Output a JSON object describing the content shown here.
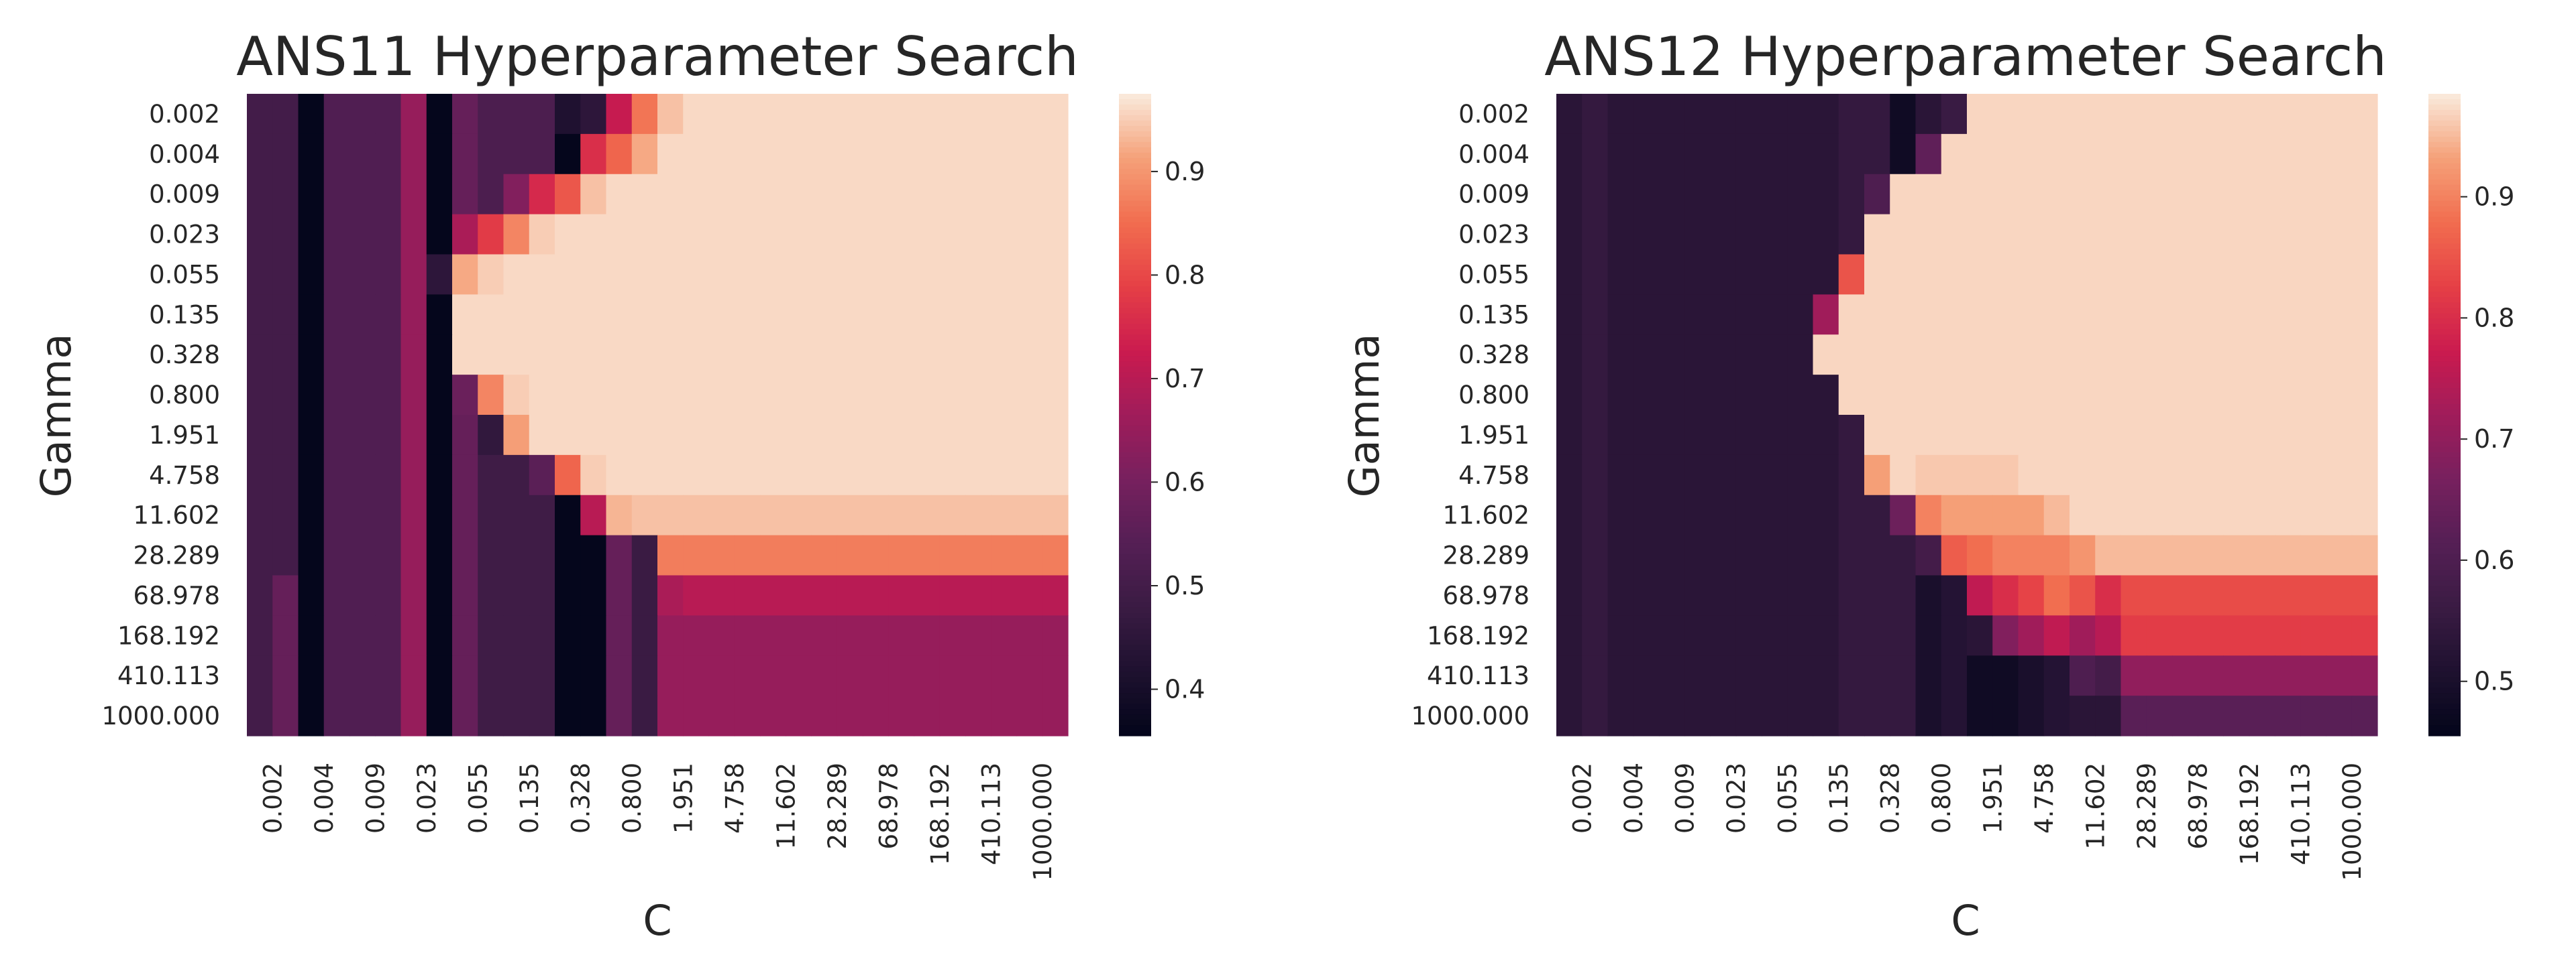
{
  "chart_data": [
    {
      "type": "heatmap",
      "title": "ANS11 Hyperparameter Search",
      "xlabel": "C",
      "ylabel": "Gamma",
      "x_tick_labels": [
        "0.002",
        "0.004",
        "0.009",
        "0.023",
        "0.055",
        "0.135",
        "0.328",
        "0.800",
        "1.951",
        "4.758",
        "11.602",
        "28.289",
        "68.978",
        "168.192",
        "410.113",
        "1000.000"
      ],
      "y_tick_labels": [
        "0.002",
        "0.004",
        "0.009",
        "0.023",
        "0.055",
        "0.135",
        "0.328",
        "0.800",
        "1.951",
        "4.758",
        "11.602",
        "28.289",
        "68.978",
        "168.192",
        "410.113",
        "1000.000"
      ],
      "grid_size": [
        32,
        16
      ],
      "colorbar": {
        "range": [
          0.355,
          0.975
        ],
        "ticks": [
          0.4,
          0.5,
          0.6,
          0.7,
          0.8,
          0.9
        ],
        "colormap": "rocket"
      },
      "values_note_columns": "rows are gamma (16, top to bottom), columns are C (32, left to right)",
      "values": [
        [
          0.5,
          0.5,
          0.36,
          0.53,
          0.53,
          0.53,
          0.65,
          0.36,
          0.57,
          0.52,
          0.52,
          0.52,
          0.42,
          0.45,
          0.72,
          0.86,
          0.94,
          0.96,
          0.96,
          0.96,
          0.96,
          0.96,
          0.96,
          0.96,
          0.96,
          0.96,
          0.96,
          0.96,
          0.96,
          0.96,
          0.96,
          0.96
        ],
        [
          0.5,
          0.5,
          0.36,
          0.53,
          0.53,
          0.53,
          0.65,
          0.36,
          0.57,
          0.52,
          0.52,
          0.52,
          0.36,
          0.76,
          0.84,
          0.92,
          0.96,
          0.96,
          0.96,
          0.96,
          0.96,
          0.96,
          0.96,
          0.96,
          0.96,
          0.96,
          0.96,
          0.96,
          0.96,
          0.96,
          0.96,
          0.96
        ],
        [
          0.5,
          0.5,
          0.36,
          0.53,
          0.53,
          0.53,
          0.65,
          0.36,
          0.57,
          0.52,
          0.62,
          0.75,
          0.82,
          0.94,
          0.96,
          0.96,
          0.96,
          0.96,
          0.96,
          0.96,
          0.96,
          0.96,
          0.96,
          0.96,
          0.96,
          0.96,
          0.96,
          0.96,
          0.96,
          0.96,
          0.96,
          0.96
        ],
        [
          0.5,
          0.5,
          0.36,
          0.53,
          0.53,
          0.53,
          0.65,
          0.36,
          0.68,
          0.78,
          0.88,
          0.95,
          0.96,
          0.96,
          0.96,
          0.96,
          0.96,
          0.96,
          0.96,
          0.96,
          0.96,
          0.96,
          0.96,
          0.96,
          0.96,
          0.96,
          0.96,
          0.96,
          0.96,
          0.96,
          0.96,
          0.96
        ],
        [
          0.5,
          0.5,
          0.36,
          0.53,
          0.53,
          0.53,
          0.65,
          0.45,
          0.92,
          0.95,
          0.96,
          0.96,
          0.96,
          0.96,
          0.96,
          0.96,
          0.96,
          0.96,
          0.96,
          0.96,
          0.96,
          0.96,
          0.96,
          0.96,
          0.96,
          0.96,
          0.96,
          0.96,
          0.96,
          0.96,
          0.96,
          0.96
        ],
        [
          0.5,
          0.5,
          0.36,
          0.53,
          0.53,
          0.53,
          0.65,
          0.36,
          0.96,
          0.96,
          0.96,
          0.96,
          0.96,
          0.96,
          0.96,
          0.96,
          0.96,
          0.96,
          0.96,
          0.96,
          0.96,
          0.96,
          0.96,
          0.96,
          0.96,
          0.96,
          0.96,
          0.96,
          0.96,
          0.96,
          0.96,
          0.96
        ],
        [
          0.5,
          0.5,
          0.36,
          0.53,
          0.53,
          0.53,
          0.65,
          0.36,
          0.96,
          0.96,
          0.96,
          0.96,
          0.96,
          0.96,
          0.96,
          0.96,
          0.96,
          0.96,
          0.96,
          0.96,
          0.96,
          0.96,
          0.96,
          0.96,
          0.96,
          0.96,
          0.96,
          0.96,
          0.96,
          0.96,
          0.96,
          0.96
        ],
        [
          0.5,
          0.5,
          0.36,
          0.53,
          0.53,
          0.53,
          0.65,
          0.36,
          0.58,
          0.88,
          0.95,
          0.96,
          0.96,
          0.96,
          0.96,
          0.96,
          0.96,
          0.96,
          0.96,
          0.96,
          0.96,
          0.96,
          0.96,
          0.96,
          0.96,
          0.96,
          0.96,
          0.96,
          0.96,
          0.96,
          0.96,
          0.96
        ],
        [
          0.5,
          0.5,
          0.36,
          0.53,
          0.53,
          0.53,
          0.65,
          0.36,
          0.57,
          0.46,
          0.91,
          0.96,
          0.96,
          0.96,
          0.96,
          0.96,
          0.96,
          0.96,
          0.96,
          0.96,
          0.96,
          0.96,
          0.96,
          0.96,
          0.96,
          0.96,
          0.96,
          0.96,
          0.96,
          0.96,
          0.96,
          0.96
        ],
        [
          0.5,
          0.5,
          0.36,
          0.53,
          0.53,
          0.53,
          0.65,
          0.36,
          0.57,
          0.49,
          0.49,
          0.55,
          0.84,
          0.95,
          0.96,
          0.96,
          0.96,
          0.96,
          0.96,
          0.96,
          0.96,
          0.96,
          0.96,
          0.96,
          0.96,
          0.96,
          0.96,
          0.96,
          0.96,
          0.96,
          0.96,
          0.96
        ],
        [
          0.5,
          0.5,
          0.36,
          0.53,
          0.53,
          0.53,
          0.65,
          0.36,
          0.57,
          0.49,
          0.49,
          0.49,
          0.36,
          0.7,
          0.93,
          0.94,
          0.94,
          0.94,
          0.94,
          0.94,
          0.94,
          0.94,
          0.94,
          0.94,
          0.94,
          0.94,
          0.94,
          0.94,
          0.94,
          0.94,
          0.94,
          0.94
        ],
        [
          0.5,
          0.5,
          0.36,
          0.53,
          0.53,
          0.53,
          0.65,
          0.36,
          0.57,
          0.49,
          0.49,
          0.49,
          0.36,
          0.36,
          0.57,
          0.48,
          0.87,
          0.87,
          0.87,
          0.87,
          0.87,
          0.87,
          0.87,
          0.87,
          0.87,
          0.87,
          0.87,
          0.87,
          0.87,
          0.87,
          0.87,
          0.87
        ],
        [
          0.5,
          0.57,
          0.36,
          0.53,
          0.53,
          0.53,
          0.65,
          0.36,
          0.57,
          0.49,
          0.49,
          0.49,
          0.36,
          0.36,
          0.57,
          0.48,
          0.68,
          0.7,
          0.7,
          0.7,
          0.7,
          0.7,
          0.7,
          0.7,
          0.7,
          0.7,
          0.7,
          0.7,
          0.7,
          0.7,
          0.7,
          0.7
        ],
        [
          0.5,
          0.57,
          0.36,
          0.53,
          0.53,
          0.53,
          0.65,
          0.36,
          0.57,
          0.49,
          0.49,
          0.49,
          0.36,
          0.36,
          0.57,
          0.48,
          0.65,
          0.65,
          0.65,
          0.65,
          0.65,
          0.65,
          0.65,
          0.65,
          0.65,
          0.65,
          0.65,
          0.65,
          0.65,
          0.65,
          0.65,
          0.65
        ],
        [
          0.5,
          0.57,
          0.36,
          0.53,
          0.53,
          0.53,
          0.65,
          0.36,
          0.57,
          0.49,
          0.49,
          0.49,
          0.36,
          0.36,
          0.57,
          0.48,
          0.65,
          0.65,
          0.65,
          0.65,
          0.65,
          0.65,
          0.65,
          0.65,
          0.65,
          0.65,
          0.65,
          0.65,
          0.65,
          0.65,
          0.65,
          0.65
        ],
        [
          0.5,
          0.57,
          0.36,
          0.53,
          0.53,
          0.53,
          0.65,
          0.36,
          0.57,
          0.49,
          0.49,
          0.49,
          0.36,
          0.36,
          0.57,
          0.48,
          0.65,
          0.65,
          0.65,
          0.65,
          0.65,
          0.65,
          0.65,
          0.65,
          0.65,
          0.65,
          0.65,
          0.65,
          0.65,
          0.65,
          0.65,
          0.65
        ]
      ]
    },
    {
      "type": "heatmap",
      "title": "ANS12 Hyperparameter Search",
      "xlabel": "C",
      "ylabel": "Gamma",
      "x_tick_labels": [
        "0.002",
        "0.004",
        "0.009",
        "0.023",
        "0.055",
        "0.135",
        "0.328",
        "0.800",
        "1.951",
        "4.758",
        "11.602",
        "28.289",
        "68.978",
        "168.192",
        "410.113",
        "1000.000"
      ],
      "y_tick_labels": [
        "0.002",
        "0.004",
        "0.009",
        "0.023",
        "0.055",
        "0.135",
        "0.328",
        "0.800",
        "1.951",
        "4.758",
        "11.602",
        "28.289",
        "68.978",
        "168.192",
        "410.113",
        "1000.000"
      ],
      "grid_size": [
        32,
        16
      ],
      "colorbar": {
        "range": [
          0.455,
          0.985
        ],
        "ticks": [
          0.5,
          0.6,
          0.7,
          0.8,
          0.9
        ],
        "colormap": "rocket"
      },
      "values_note_columns": "rows are gamma (16, top to bottom), columns are C (32, left to right)",
      "values": [
        [
          0.53,
          0.55,
          0.53,
          0.53,
          0.53,
          0.53,
          0.53,
          0.53,
          0.53,
          0.53,
          0.53,
          0.55,
          0.55,
          0.48,
          0.53,
          0.56,
          0.97,
          0.97,
          0.97,
          0.97,
          0.97,
          0.97,
          0.97,
          0.97,
          0.97,
          0.97,
          0.97,
          0.97,
          0.97,
          0.97,
          0.97,
          0.97
        ],
        [
          0.53,
          0.55,
          0.53,
          0.53,
          0.53,
          0.53,
          0.53,
          0.53,
          0.53,
          0.53,
          0.53,
          0.55,
          0.55,
          0.48,
          0.63,
          0.97,
          0.97,
          0.97,
          0.97,
          0.97,
          0.97,
          0.97,
          0.97,
          0.97,
          0.97,
          0.97,
          0.97,
          0.97,
          0.97,
          0.97,
          0.97,
          0.97
        ],
        [
          0.53,
          0.55,
          0.53,
          0.53,
          0.53,
          0.53,
          0.53,
          0.53,
          0.53,
          0.53,
          0.53,
          0.55,
          0.6,
          0.97,
          0.97,
          0.97,
          0.97,
          0.97,
          0.97,
          0.97,
          0.97,
          0.97,
          0.97,
          0.97,
          0.97,
          0.97,
          0.97,
          0.97,
          0.97,
          0.97,
          0.97,
          0.97
        ],
        [
          0.53,
          0.55,
          0.53,
          0.53,
          0.53,
          0.53,
          0.53,
          0.53,
          0.53,
          0.53,
          0.53,
          0.55,
          0.97,
          0.97,
          0.97,
          0.97,
          0.97,
          0.97,
          0.97,
          0.97,
          0.97,
          0.97,
          0.97,
          0.97,
          0.97,
          0.97,
          0.97,
          0.97,
          0.97,
          0.97,
          0.97,
          0.97
        ],
        [
          0.53,
          0.55,
          0.53,
          0.53,
          0.53,
          0.53,
          0.53,
          0.53,
          0.53,
          0.53,
          0.53,
          0.85,
          0.97,
          0.97,
          0.97,
          0.97,
          0.97,
          0.97,
          0.97,
          0.97,
          0.97,
          0.97,
          0.97,
          0.97,
          0.97,
          0.97,
          0.97,
          0.97,
          0.97,
          0.97,
          0.97,
          0.97
        ],
        [
          0.53,
          0.55,
          0.53,
          0.53,
          0.53,
          0.53,
          0.53,
          0.53,
          0.53,
          0.53,
          0.72,
          0.97,
          0.97,
          0.97,
          0.97,
          0.97,
          0.97,
          0.97,
          0.97,
          0.97,
          0.97,
          0.97,
          0.97,
          0.97,
          0.97,
          0.97,
          0.97,
          0.97,
          0.97,
          0.97,
          0.97,
          0.97
        ],
        [
          0.53,
          0.55,
          0.53,
          0.53,
          0.53,
          0.53,
          0.53,
          0.53,
          0.53,
          0.53,
          0.97,
          0.97,
          0.97,
          0.97,
          0.97,
          0.97,
          0.97,
          0.97,
          0.97,
          0.97,
          0.97,
          0.97,
          0.97,
          0.97,
          0.97,
          0.97,
          0.97,
          0.97,
          0.97,
          0.97,
          0.97,
          0.97
        ],
        [
          0.53,
          0.55,
          0.53,
          0.53,
          0.53,
          0.53,
          0.53,
          0.53,
          0.53,
          0.53,
          0.53,
          0.97,
          0.97,
          0.97,
          0.97,
          0.97,
          0.97,
          0.97,
          0.97,
          0.97,
          0.97,
          0.97,
          0.97,
          0.97,
          0.97,
          0.97,
          0.97,
          0.97,
          0.97,
          0.97,
          0.97,
          0.97
        ],
        [
          0.53,
          0.55,
          0.53,
          0.53,
          0.53,
          0.53,
          0.53,
          0.53,
          0.53,
          0.53,
          0.53,
          0.55,
          0.97,
          0.97,
          0.97,
          0.97,
          0.97,
          0.97,
          0.97,
          0.97,
          0.97,
          0.97,
          0.97,
          0.97,
          0.97,
          0.97,
          0.97,
          0.97,
          0.97,
          0.97,
          0.97,
          0.97
        ],
        [
          0.53,
          0.55,
          0.53,
          0.53,
          0.53,
          0.53,
          0.53,
          0.53,
          0.53,
          0.53,
          0.53,
          0.55,
          0.93,
          0.97,
          0.96,
          0.96,
          0.96,
          0.96,
          0.97,
          0.97,
          0.97,
          0.97,
          0.97,
          0.97,
          0.97,
          0.97,
          0.97,
          0.97,
          0.97,
          0.97,
          0.97,
          0.97
        ],
        [
          0.53,
          0.55,
          0.53,
          0.53,
          0.53,
          0.53,
          0.53,
          0.53,
          0.53,
          0.53,
          0.53,
          0.55,
          0.55,
          0.65,
          0.9,
          0.93,
          0.93,
          0.93,
          0.93,
          0.95,
          0.97,
          0.97,
          0.97,
          0.97,
          0.97,
          0.97,
          0.97,
          0.97,
          0.97,
          0.97,
          0.97,
          0.97
        ],
        [
          0.53,
          0.55,
          0.53,
          0.53,
          0.53,
          0.53,
          0.53,
          0.53,
          0.53,
          0.53,
          0.53,
          0.55,
          0.55,
          0.55,
          0.58,
          0.86,
          0.88,
          0.9,
          0.9,
          0.9,
          0.92,
          0.95,
          0.95,
          0.95,
          0.95,
          0.95,
          0.95,
          0.95,
          0.95,
          0.95,
          0.95,
          0.95
        ],
        [
          0.53,
          0.55,
          0.53,
          0.53,
          0.53,
          0.53,
          0.53,
          0.53,
          0.53,
          0.53,
          0.53,
          0.55,
          0.55,
          0.55,
          0.5,
          0.52,
          0.76,
          0.8,
          0.83,
          0.88,
          0.85,
          0.8,
          0.84,
          0.84,
          0.84,
          0.84,
          0.84,
          0.84,
          0.84,
          0.84,
          0.84,
          0.84
        ],
        [
          0.53,
          0.55,
          0.53,
          0.53,
          0.53,
          0.53,
          0.53,
          0.53,
          0.53,
          0.53,
          0.53,
          0.55,
          0.55,
          0.55,
          0.5,
          0.52,
          0.53,
          0.68,
          0.72,
          0.76,
          0.72,
          0.75,
          0.82,
          0.82,
          0.82,
          0.82,
          0.82,
          0.82,
          0.82,
          0.82,
          0.82,
          0.82
        ],
        [
          0.53,
          0.55,
          0.53,
          0.53,
          0.53,
          0.53,
          0.53,
          0.53,
          0.53,
          0.53,
          0.53,
          0.55,
          0.55,
          0.55,
          0.5,
          0.52,
          0.48,
          0.48,
          0.5,
          0.52,
          0.6,
          0.58,
          0.7,
          0.7,
          0.7,
          0.7,
          0.7,
          0.7,
          0.7,
          0.7,
          0.7,
          0.7
        ],
        [
          0.53,
          0.55,
          0.53,
          0.53,
          0.53,
          0.53,
          0.53,
          0.53,
          0.53,
          0.53,
          0.53,
          0.55,
          0.55,
          0.55,
          0.5,
          0.52,
          0.48,
          0.48,
          0.5,
          0.52,
          0.53,
          0.53,
          0.62,
          0.62,
          0.62,
          0.62,
          0.62,
          0.62,
          0.62,
          0.62,
          0.62,
          0.62
        ]
      ]
    }
  ]
}
